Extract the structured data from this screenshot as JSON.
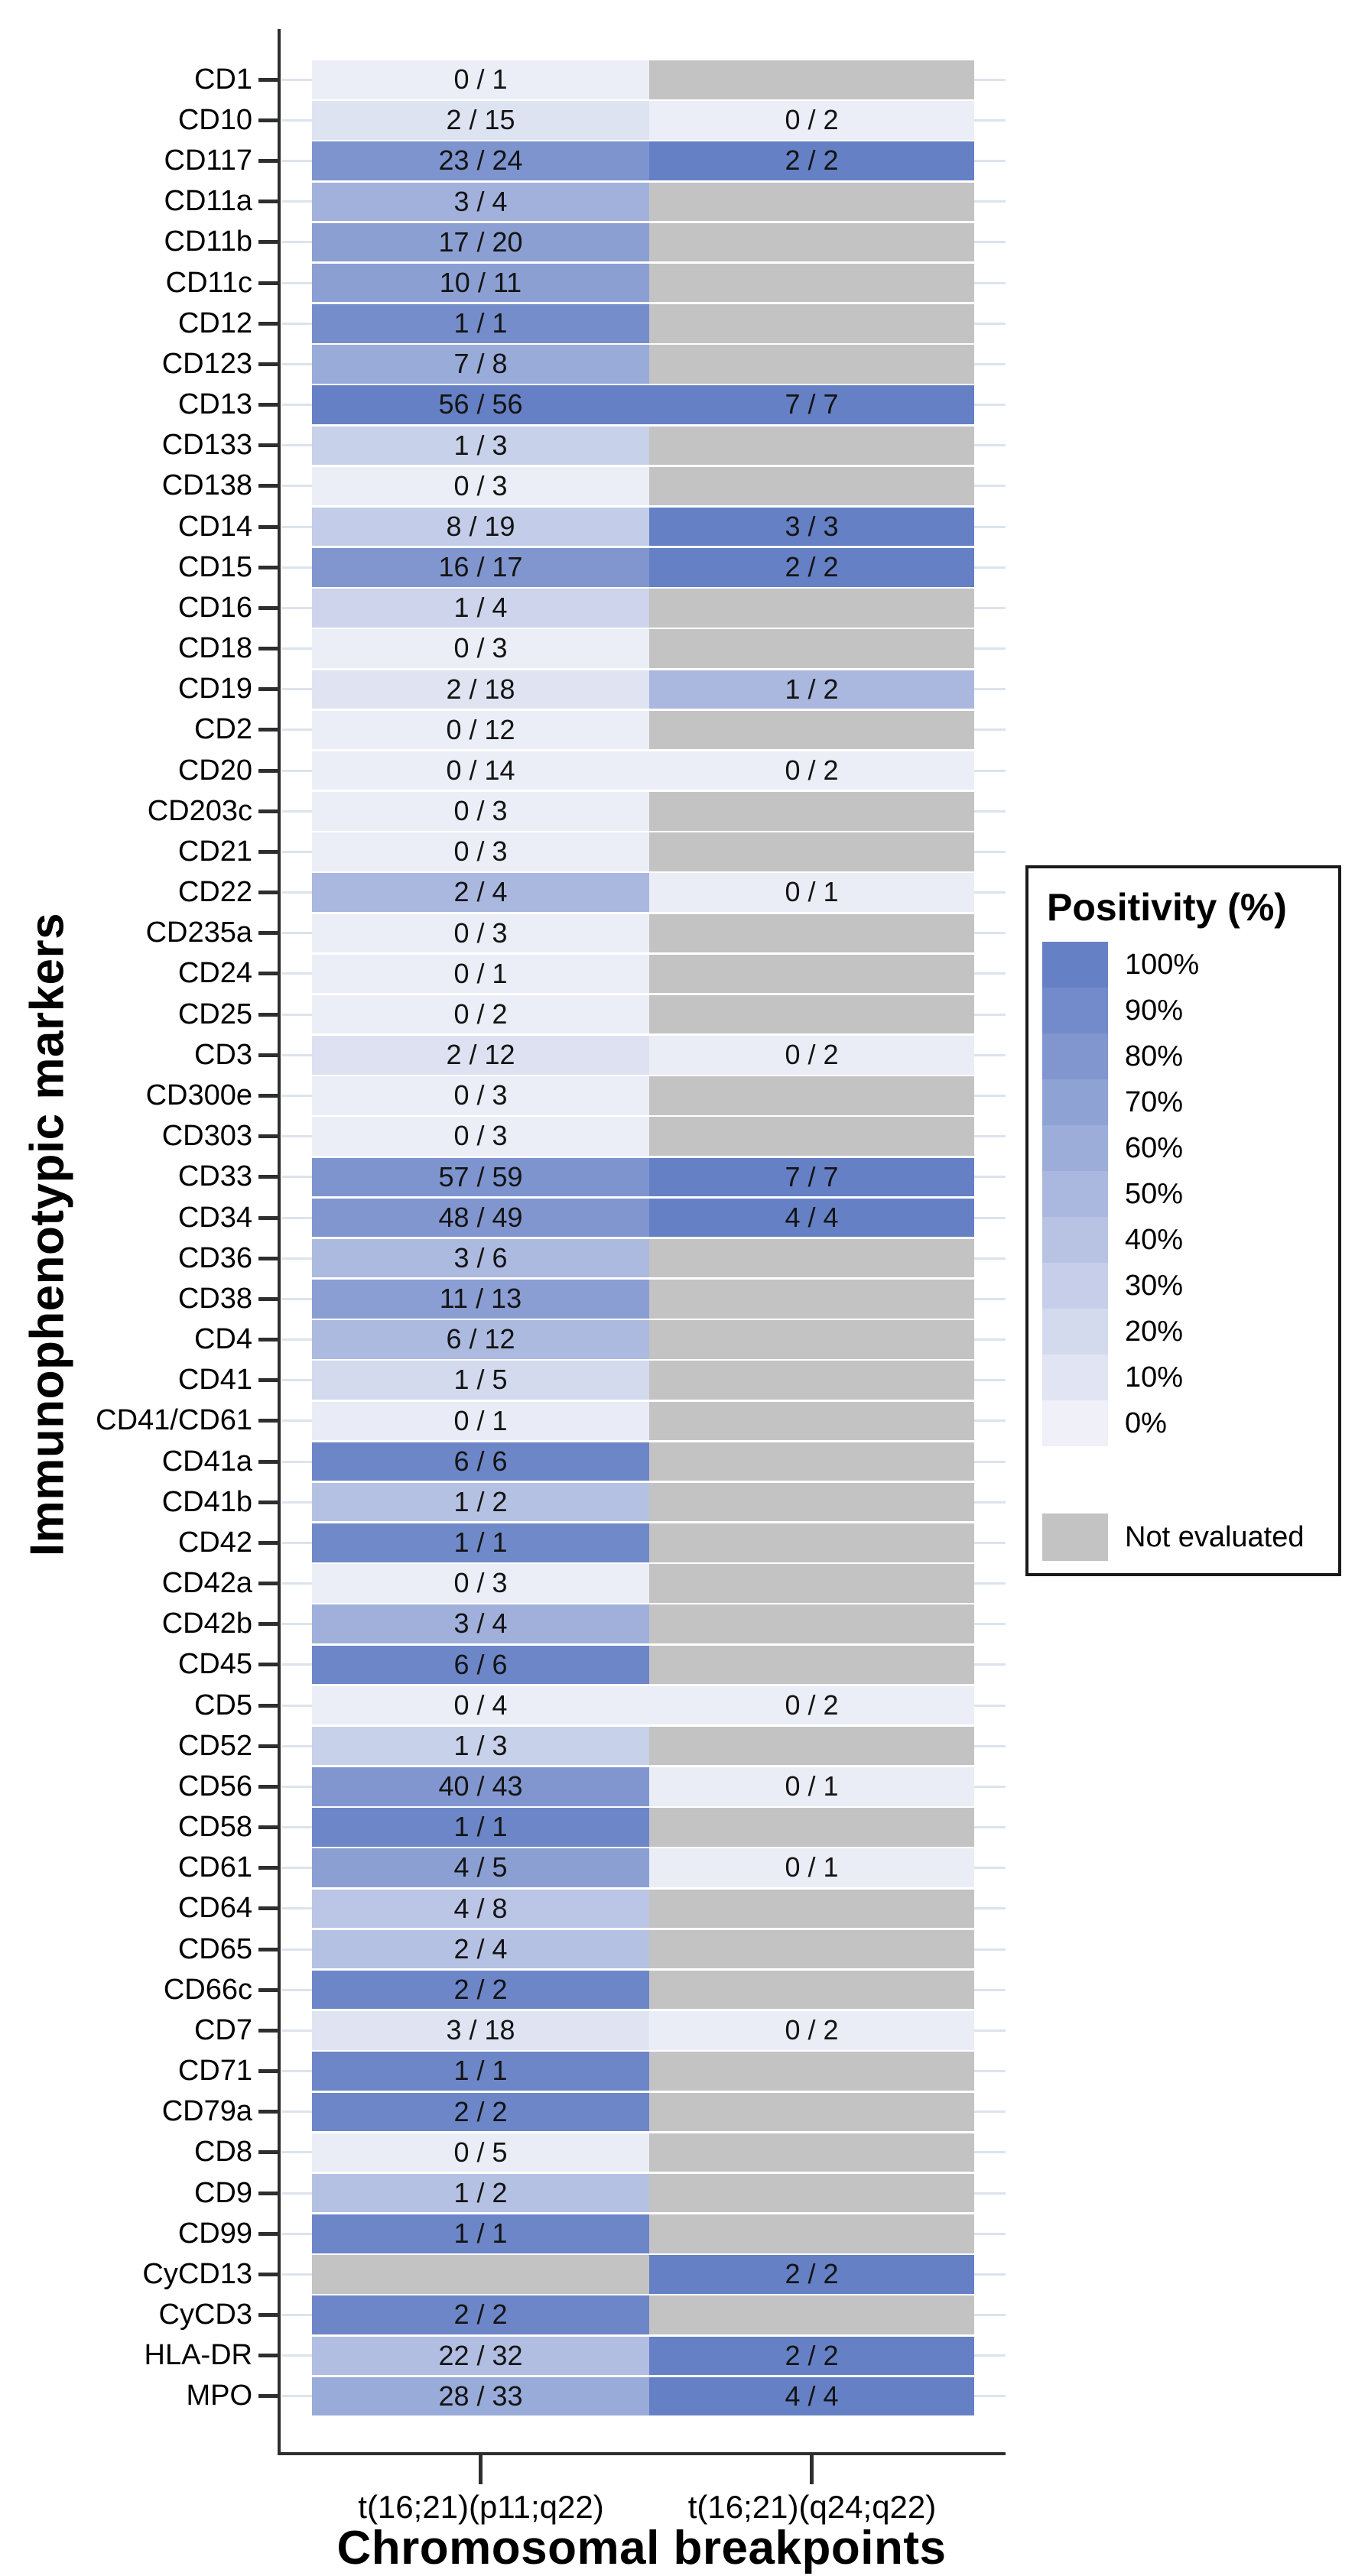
{
  "y_axis_title": "Immunophenotypic markers",
  "x_axis_title": "Chromosomal breakpoints",
  "legend": {
    "title": "Positivity (%)",
    "entries": [
      {
        "label": "100%",
        "value": 100
      },
      {
        "label": "90%",
        "value": 90
      },
      {
        "label": "80%",
        "value": 80
      },
      {
        "label": "70%",
        "value": 70
      },
      {
        "label": "60%",
        "value": 60
      },
      {
        "label": "50%",
        "value": 50
      },
      {
        "label": "40%",
        "value": 40
      },
      {
        "label": "30%",
        "value": 30
      },
      {
        "label": "20%",
        "value": 20
      },
      {
        "label": "10%",
        "value": 10
      },
      {
        "label": "0%",
        "value": 0
      }
    ],
    "not_evaluated_label": "Not evaluated"
  },
  "colors": {
    "scale_low": "#eff0f8",
    "scale_high": "#6580c5",
    "not_evaluated": "#c3c3c3",
    "axis": "#2e2e2e",
    "grid_stub": "#dce3ee"
  },
  "chart_data": {
    "type": "heatmap",
    "xlabel": "Chromosomal breakpoints",
    "ylabel": "Immunophenotypic markers",
    "legend_title": "Positivity (%)",
    "columns": [
      "t(16;21)(p11;q22)",
      "t(16;21)(q24;q22)"
    ],
    "cell_label_format": "positive cases / evaluated cases; null cell = Not evaluated; fill_pct = color-scale positivity percent",
    "rows": [
      {
        "marker": "CD1",
        "cells": [
          {
            "label": "0 / 1",
            "fill_pct": 2
          },
          null
        ]
      },
      {
        "marker": "CD10",
        "cells": [
          {
            "label": "2 / 15",
            "fill_pct": 12
          },
          {
            "label": "0 / 2",
            "fill_pct": 2
          }
        ]
      },
      {
        "marker": "CD117",
        "cells": [
          {
            "label": "23 / 24",
            "fill_pct": 82
          },
          {
            "label": "2 / 2",
            "fill_pct": 100
          }
        ]
      },
      {
        "marker": "CD11a",
        "cells": [
          {
            "label": "3 / 4",
            "fill_pct": 56
          },
          null
        ]
      },
      {
        "marker": "CD11b",
        "cells": [
          {
            "label": "17 / 20",
            "fill_pct": 72
          },
          null
        ]
      },
      {
        "marker": "CD11c",
        "cells": [
          {
            "label": "10 / 11",
            "fill_pct": 72
          },
          null
        ]
      },
      {
        "marker": "CD12",
        "cells": [
          {
            "label": "1 / 1",
            "fill_pct": 88
          },
          null
        ]
      },
      {
        "marker": "CD123",
        "cells": [
          {
            "label": "7 / 8",
            "fill_pct": 62
          },
          null
        ]
      },
      {
        "marker": "CD13",
        "cells": [
          {
            "label": "56 / 56",
            "fill_pct": 100
          },
          {
            "label": "7 / 7",
            "fill_pct": 100
          }
        ]
      },
      {
        "marker": "CD133",
        "cells": [
          {
            "label": "1 / 3",
            "fill_pct": 28
          },
          null
        ]
      },
      {
        "marker": "CD138",
        "cells": [
          {
            "label": "0 / 3",
            "fill_pct": 2
          },
          null
        ]
      },
      {
        "marker": "CD14",
        "cells": [
          {
            "label": "8 / 19",
            "fill_pct": 32
          },
          {
            "label": "3 / 3",
            "fill_pct": 100
          }
        ]
      },
      {
        "marker": "CD15",
        "cells": [
          {
            "label": "16 / 17",
            "fill_pct": 80
          },
          {
            "label": "2 / 2",
            "fill_pct": 100
          }
        ]
      },
      {
        "marker": "CD16",
        "cells": [
          {
            "label": "1 / 4",
            "fill_pct": 25
          },
          null
        ]
      },
      {
        "marker": "CD18",
        "cells": [
          {
            "label": "0 / 3",
            "fill_pct": 2
          },
          null
        ]
      },
      {
        "marker": "CD19",
        "cells": [
          {
            "label": "2 / 18",
            "fill_pct": 11
          },
          {
            "label": "1 / 2",
            "fill_pct": 50
          }
        ]
      },
      {
        "marker": "CD2",
        "cells": [
          {
            "label": "0 / 12",
            "fill_pct": 2
          },
          null
        ]
      },
      {
        "marker": "CD20",
        "cells": [
          {
            "label": "0 / 14",
            "fill_pct": 2
          },
          {
            "label": "0 / 2",
            "fill_pct": 2
          }
        ]
      },
      {
        "marker": "CD203c",
        "cells": [
          {
            "label": "0 / 3",
            "fill_pct": 2
          },
          null
        ]
      },
      {
        "marker": "CD21",
        "cells": [
          {
            "label": "0 / 3",
            "fill_pct": 2
          },
          null
        ]
      },
      {
        "marker": "CD22",
        "cells": [
          {
            "label": "2 / 4",
            "fill_pct": 50
          },
          {
            "label": "0 / 1",
            "fill_pct": 3
          }
        ]
      },
      {
        "marker": "CD235a",
        "cells": [
          {
            "label": "0 / 3",
            "fill_pct": 2
          },
          null
        ]
      },
      {
        "marker": "CD24",
        "cells": [
          {
            "label": "0 / 1",
            "fill_pct": 2
          },
          null
        ]
      },
      {
        "marker": "CD25",
        "cells": [
          {
            "label": "0 / 2",
            "fill_pct": 2
          },
          null
        ]
      },
      {
        "marker": "CD3",
        "cells": [
          {
            "label": "2 / 12",
            "fill_pct": 13
          },
          {
            "label": "0 / 2",
            "fill_pct": 3
          }
        ]
      },
      {
        "marker": "CD300e",
        "cells": [
          {
            "label": "0 / 3",
            "fill_pct": 2
          },
          null
        ]
      },
      {
        "marker": "CD303",
        "cells": [
          {
            "label": "0 / 3",
            "fill_pct": 2
          },
          null
        ]
      },
      {
        "marker": "CD33",
        "cells": [
          {
            "label": "57 / 59",
            "fill_pct": 82
          },
          {
            "label": "7 / 7",
            "fill_pct": 100
          }
        ]
      },
      {
        "marker": "CD34",
        "cells": [
          {
            "label": "48 / 49",
            "fill_pct": 80
          },
          {
            "label": "4 / 4",
            "fill_pct": 100
          }
        ]
      },
      {
        "marker": "CD36",
        "cells": [
          {
            "label": "3 / 6",
            "fill_pct": 48
          },
          null
        ]
      },
      {
        "marker": "CD38",
        "cells": [
          {
            "label": "11 / 13",
            "fill_pct": 73
          },
          null
        ]
      },
      {
        "marker": "CD4",
        "cells": [
          {
            "label": "6 / 12",
            "fill_pct": 48
          },
          null
        ]
      },
      {
        "marker": "CD41",
        "cells": [
          {
            "label": "1 / 5",
            "fill_pct": 20
          },
          null
        ]
      },
      {
        "marker": "CD41/CD61",
        "cells": [
          {
            "label": "0 / 1",
            "fill_pct": 4
          },
          null
        ]
      },
      {
        "marker": "CD41a",
        "cells": [
          {
            "label": "6 / 6",
            "fill_pct": 95
          },
          null
        ]
      },
      {
        "marker": "CD41b",
        "cells": [
          {
            "label": "1 / 2",
            "fill_pct": 42
          },
          null
        ]
      },
      {
        "marker": "CD42",
        "cells": [
          {
            "label": "1 / 1",
            "fill_pct": 92
          },
          null
        ]
      },
      {
        "marker": "CD42a",
        "cells": [
          {
            "label": "0 / 3",
            "fill_pct": 2
          },
          null
        ]
      },
      {
        "marker": "CD42b",
        "cells": [
          {
            "label": "3 / 4",
            "fill_pct": 57
          },
          null
        ]
      },
      {
        "marker": "CD45",
        "cells": [
          {
            "label": "6 / 6",
            "fill_pct": 95
          },
          null
        ]
      },
      {
        "marker": "CD5",
        "cells": [
          {
            "label": "0 / 4",
            "fill_pct": 2
          },
          {
            "label": "0 / 2",
            "fill_pct": 2
          }
        ]
      },
      {
        "marker": "CD52",
        "cells": [
          {
            "label": "1 / 3",
            "fill_pct": 28
          },
          null
        ]
      },
      {
        "marker": "CD56",
        "cells": [
          {
            "label": "40 / 43",
            "fill_pct": 80
          },
          {
            "label": "0 / 1",
            "fill_pct": 3
          }
        ]
      },
      {
        "marker": "CD58",
        "cells": [
          {
            "label": "1 / 1",
            "fill_pct": 95
          },
          null
        ]
      },
      {
        "marker": "CD61",
        "cells": [
          {
            "label": "4 / 5",
            "fill_pct": 72
          },
          {
            "label": "0 / 1",
            "fill_pct": 3
          }
        ]
      },
      {
        "marker": "CD64",
        "cells": [
          {
            "label": "4 / 8",
            "fill_pct": 38
          },
          null
        ]
      },
      {
        "marker": "CD65",
        "cells": [
          {
            "label": "2 / 4",
            "fill_pct": 42
          },
          null
        ]
      },
      {
        "marker": "CD66c",
        "cells": [
          {
            "label": "2 / 2",
            "fill_pct": 95
          },
          null
        ]
      },
      {
        "marker": "CD7",
        "cells": [
          {
            "label": "3 / 18",
            "fill_pct": 11
          },
          {
            "label": "0 / 2",
            "fill_pct": 3
          }
        ]
      },
      {
        "marker": "CD71",
        "cells": [
          {
            "label": "1 / 1",
            "fill_pct": 95
          },
          null
        ]
      },
      {
        "marker": "CD79a",
        "cells": [
          {
            "label": "2 / 2",
            "fill_pct": 95
          },
          null
        ]
      },
      {
        "marker": "CD8",
        "cells": [
          {
            "label": "0 / 5",
            "fill_pct": 3
          },
          null
        ]
      },
      {
        "marker": "CD9",
        "cells": [
          {
            "label": "1 / 2",
            "fill_pct": 42
          },
          null
        ]
      },
      {
        "marker": "CD99",
        "cells": [
          {
            "label": "1 / 1",
            "fill_pct": 95
          },
          null
        ]
      },
      {
        "marker": "CyCD13",
        "cells": [
          null,
          {
            "label": "2 / 2",
            "fill_pct": 100
          }
        ]
      },
      {
        "marker": "CyCD3",
        "cells": [
          {
            "label": "2 / 2",
            "fill_pct": 95
          },
          null
        ]
      },
      {
        "marker": "HLA-DR",
        "cells": [
          {
            "label": "22 / 32",
            "fill_pct": 45
          },
          {
            "label": "2 / 2",
            "fill_pct": 100
          }
        ]
      },
      {
        "marker": "MPO",
        "cells": [
          {
            "label": "28 / 33",
            "fill_pct": 62
          },
          {
            "label": "4 / 4",
            "fill_pct": 100
          }
        ]
      }
    ]
  }
}
